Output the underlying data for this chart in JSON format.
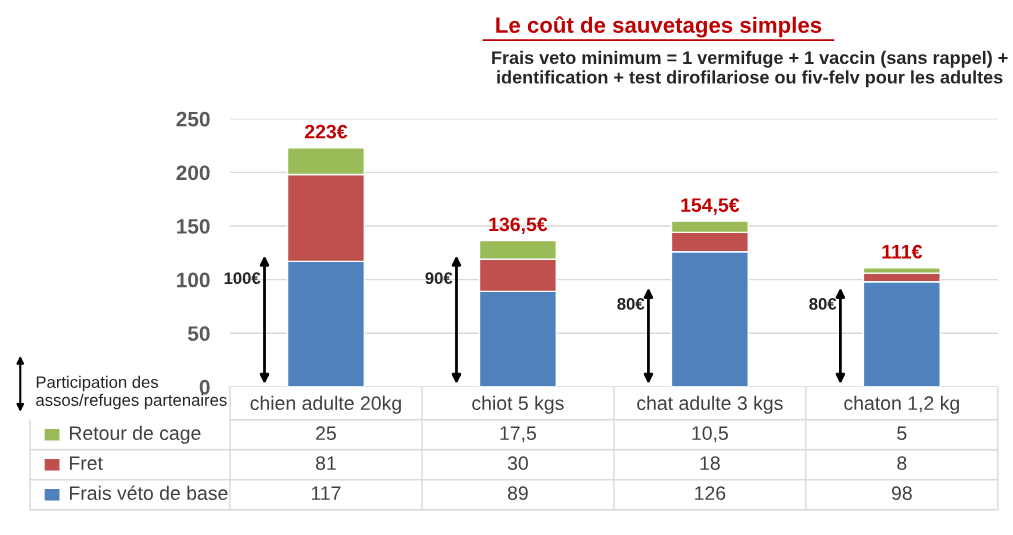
{
  "chart_data": {
    "type": "bar",
    "title": "Le coût de sauvetages simples",
    "subtitle": "Frais veto minimum = 1 vermifuge + 1 vaccin (sans rappel) + identification + test dirofilariose ou fiv-felv pour les adultes",
    "categories": [
      "chien adulte 20kg",
      "chiot 5 kgs",
      "chat adulte 3 kgs",
      "chaton 1,2 kg"
    ],
    "stacked": true,
    "series": [
      {
        "name": "Frais véto de base",
        "color": "#4f81bd",
        "values": [
          117,
          89,
          126,
          98
        ],
        "value_labels": [
          "117",
          "89",
          "126",
          "98"
        ]
      },
      {
        "name": "Fret",
        "color": "#c0504d",
        "values": [
          81,
          30,
          18,
          8
        ],
        "value_labels": [
          "81",
          "30",
          "18",
          "8"
        ]
      },
      {
        "name": "Retour de cage",
        "color": "#9bbb59",
        "values": [
          25,
          17.5,
          10.5,
          5
        ],
        "value_labels": [
          "25",
          "17,5",
          "10,5",
          "5"
        ]
      }
    ],
    "totals": [
      "223€",
      "136,5€",
      "154,5€",
      "111€"
    ],
    "annotations": [
      "100€",
      "90€",
      "80€",
      "80€",
      "Participation des assos/refuges partenaires"
    ],
    "ylim": [
      0,
      250
    ],
    "yticks": [
      0,
      50,
      100,
      150,
      200,
      250
    ],
    "grid": "y",
    "legend": "bottom"
  }
}
